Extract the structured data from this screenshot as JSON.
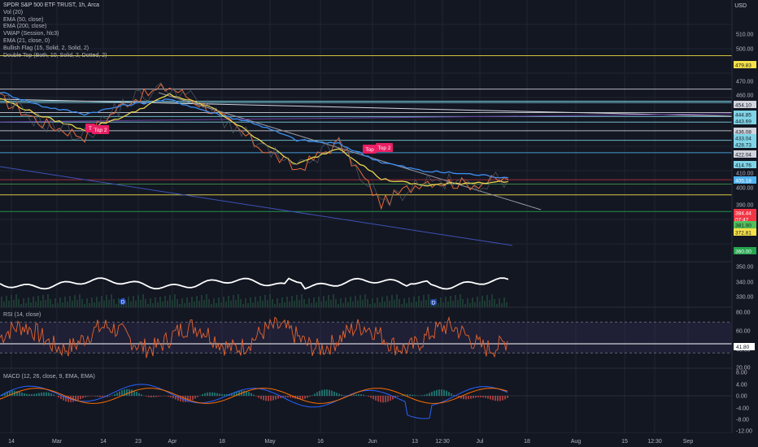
{
  "header": {
    "title": "SPDR S&P 500 ETF TRUST, 1h, Arca",
    "indicators": [
      "Vol (20)",
      "EMA (50, close)",
      "EMA (200, close)",
      "VWAP (Session, hlc3)",
      "EMA (21, close, 0)",
      "Bullish Flag (15, Solid, 2, Solid, 2)",
      "Double Top (Both, 10, Solid, 2, Dotted, 2)"
    ],
    "currency": "USD"
  },
  "panes": {
    "rsi_label": "RSI (14, close)",
    "macd_label": "MACD (12, 26, close, 9, EMA, EMA)"
  },
  "price_axis": {
    "ticks": [
      "510.00",
      "500.00",
      "490.00",
      "470.00",
      "460.00",
      "410.00",
      "400.00",
      "390.00",
      "350.00",
      "340.00",
      "330.00"
    ],
    "levels": [
      {
        "value": 479.83,
        "label": "479.83",
        "color": "#f5e148"
      },
      {
        "value": 454.1,
        "label": "454.10",
        "color": "#d1d4dc"
      },
      {
        "value": 444.85,
        "label": "444.85",
        "color": "#7fd4e6"
      },
      {
        "value": 443.69,
        "label": "443.69",
        "color": "#7fd4e6"
      },
      {
        "value": 436.08,
        "label": "436.08",
        "color": "#d1d4dc"
      },
      {
        "value": 433.04,
        "label": "433.04",
        "color": "#7fd4e6"
      },
      {
        "value": 428.73,
        "label": "428.73",
        "color": "#7fd4e6"
      },
      {
        "value": 422.04,
        "label": "422.04",
        "color": "#d1d4dc"
      },
      {
        "value": 414.76,
        "label": "414.76",
        "color": "#7fd4e6"
      },
      {
        "value": 405.18,
        "label": "405.18",
        "color": "#4fb2f0"
      },
      {
        "value": 384.44,
        "label": "384.44",
        "color": "#f23645"
      },
      {
        "value": null,
        "label": "07:47",
        "color": "#f23645"
      },
      {
        "value": 381.0,
        "label": "381.00",
        "color": "#52c05a"
      },
      {
        "value": 372.81,
        "label": "372.81",
        "color": "#f5e148"
      },
      {
        "value": 360.0,
        "label": "360.00",
        "color": "#26a650"
      }
    ]
  },
  "rsi_axis": {
    "ticks": [
      "80.00",
      "60.00",
      "40.00",
      "20.00"
    ],
    "current": "41.80"
  },
  "macd_axis": {
    "ticks": [
      "8.00",
      "4.00",
      "0.00",
      "-4.00",
      "-8.00",
      "-12.00"
    ]
  },
  "time_axis": [
    "14",
    "Mar",
    "14",
    "23",
    "Apr",
    "18",
    "May",
    "16",
    "Jun",
    "13",
    "12:30",
    "Jul",
    "18",
    "Aug",
    "15",
    "12:30",
    "Sep"
  ],
  "annotations": [
    "T",
    "Top 2",
    "Top",
    "Top 2"
  ],
  "event_markers": [
    "D",
    "D"
  ],
  "chart_data": {
    "type": "line",
    "title": "SPDR S&P 500 ETF TRUST, 1h, Arca",
    "xlabel": "",
    "ylabel": "USD",
    "ylim": [
      332,
      517
    ],
    "x": [
      "Feb 14",
      "Mar 1",
      "Mar 14",
      "Mar 23",
      "Apr 1",
      "Apr 18",
      "May 1",
      "May 16",
      "Jun 1",
      "Jun 13",
      "Jun 22",
      "Jul 1",
      "Jul 8"
    ],
    "series": [
      {
        "name": "SPY",
        "values": [
          447,
          428,
          418,
          445,
          456,
          438,
          413,
          392,
          413,
          366,
          384,
          381,
          384.44
        ]
      },
      {
        "name": "EMA (200, close)",
        "values": [
          452,
          441,
          435,
          442,
          446,
          436,
          428,
          415,
          412,
          398,
          391,
          389,
          386
        ]
      },
      {
        "name": "EMA (50, close)",
        "values": [
          447,
          433,
          423,
          434,
          450,
          440,
          418,
          396,
          409,
          385,
          380,
          382,
          383
        ]
      }
    ]
  }
}
